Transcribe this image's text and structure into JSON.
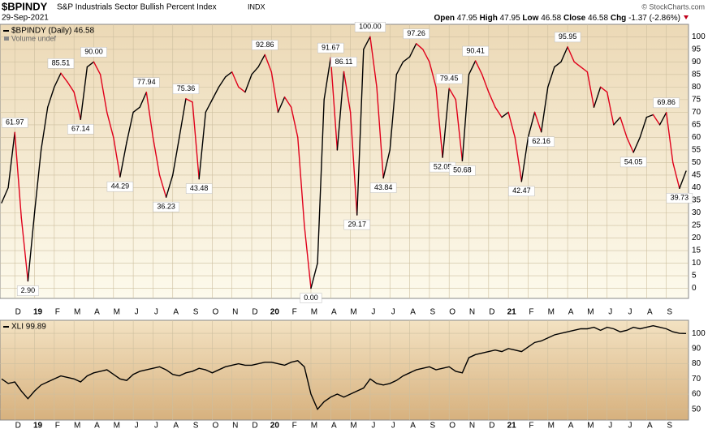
{
  "header": {
    "symbol": "$BPINDY",
    "name": "S&P Industrials Sector Bullish Percent Index",
    "exchange": "INDX",
    "date": "29-Sep-2021",
    "copyright": "© StockCharts.com",
    "quote": [
      {
        "label": "Open",
        "value": "47.95"
      },
      {
        "label": "High",
        "value": "47.95"
      },
      {
        "label": "Low",
        "value": "46.58"
      },
      {
        "label": "Close",
        "value": "46.58"
      },
      {
        "label": "Chg",
        "value": "-1.37 (-2.86%)"
      }
    ]
  },
  "chart_data": [
    {
      "type": "line",
      "volume_note": "Volume undef",
      "categories": [
        null,
        null,
        "D",
        null,
        null,
        "19",
        null,
        null,
        "F",
        null,
        null,
        "M",
        null,
        null,
        "A",
        null,
        null,
        "M",
        null,
        null,
        "J",
        null,
        null,
        "J",
        null,
        null,
        "A",
        null,
        null,
        "S",
        null,
        null,
        "O",
        null,
        null,
        "N",
        null,
        null,
        "D",
        null,
        null,
        "20",
        null,
        null,
        "F",
        null,
        null,
        "M",
        null,
        null,
        "A",
        null,
        null,
        "M",
        null,
        null,
        "J",
        null,
        null,
        "J",
        null,
        null,
        "A",
        null,
        null,
        "S",
        null,
        null,
        "O",
        null,
        null,
        "N",
        null,
        null,
        "D",
        null,
        null,
        "21",
        null,
        null,
        "F",
        null,
        null,
        "M",
        null,
        null,
        "A",
        null,
        null,
        "M",
        null,
        null,
        "J",
        null,
        null,
        "J",
        null,
        null,
        "A",
        null,
        null,
        "S",
        null,
        null,
        null
      ],
      "series": [
        {
          "name": "$BPINDY (Daily) 46.58",
          "color": "#000000",
          "down_color": "#e0001b",
          "values": [
            34,
            40,
            61.97,
            28,
            2.9,
            30,
            55,
            72,
            80,
            85.51,
            82,
            78,
            67.14,
            88,
            90,
            85,
            70,
            60,
            44.29,
            58,
            70,
            72,
            77.94,
            60,
            45,
            36.23,
            45,
            60,
            75.36,
            74,
            43.48,
            70,
            75,
            80,
            84,
            86,
            80,
            78,
            85,
            88,
            92.86,
            86,
            70,
            76,
            72,
            60,
            25,
            0,
            10,
            75,
            91.67,
            55,
            86.11,
            70,
            29.17,
            95,
            100,
            80,
            43.84,
            55,
            85,
            90,
            92,
            97.26,
            95,
            90,
            80,
            52.05,
            79.45,
            75,
            50.68,
            85,
            90.41,
            85,
            78,
            72,
            68,
            70,
            60,
            42.47,
            60,
            70,
            62.16,
            80,
            88,
            90,
            95.95,
            90,
            88,
            86,
            72,
            80,
            78,
            65,
            68,
            60,
            54.05,
            60,
            68,
            69,
            65,
            69.86,
            50,
            39.73,
            46.58
          ],
          "value_labels": [
            null,
            null,
            "61.97",
            null,
            "2.90",
            null,
            null,
            null,
            null,
            "85.51",
            null,
            null,
            "67.14",
            null,
            "90.00",
            null,
            null,
            null,
            "44.29",
            null,
            null,
            null,
            "77.94",
            null,
            null,
            "36.23",
            null,
            null,
            "75.36",
            null,
            "43.48",
            null,
            null,
            null,
            null,
            null,
            null,
            null,
            null,
            null,
            "92.86",
            null,
            null,
            null,
            null,
            null,
            null,
            "0.00",
            null,
            null,
            "91.67",
            null,
            "86.11",
            null,
            "29.17",
            null,
            "100.00",
            null,
            "43.84",
            null,
            null,
            null,
            null,
            "97.26",
            null,
            null,
            null,
            "52.05",
            "79.45",
            null,
            "50.68",
            null,
            "90.41",
            null,
            null,
            null,
            null,
            null,
            null,
            "42.47",
            null,
            null,
            "62.16",
            null,
            null,
            null,
            "95.95",
            null,
            null,
            null,
            null,
            null,
            null,
            null,
            null,
            null,
            "54.05",
            null,
            null,
            null,
            null,
            "69.86",
            null,
            "39.73",
            null
          ]
        }
      ],
      "ylim": [
        -4,
        103
      ],
      "yticks": [
        0,
        5,
        10,
        15,
        20,
        25,
        30,
        35,
        40,
        45,
        50,
        55,
        60,
        65,
        70,
        75,
        80,
        85,
        90,
        95,
        100
      ],
      "grid": true
    },
    {
      "type": "line",
      "series": [
        {
          "name": "XLI 99.89",
          "color": "#000000",
          "values": [
            70,
            67,
            68,
            62,
            57,
            62,
            66,
            68,
            70,
            72,
            71,
            70,
            68,
            72,
            74,
            75,
            76,
            73,
            70,
            69,
            73,
            75,
            76,
            77,
            78,
            76,
            73,
            72,
            74,
            75,
            77,
            76,
            74,
            76,
            78,
            79,
            80,
            79,
            79,
            80,
            81,
            81,
            80,
            79,
            81,
            82,
            78,
            60,
            50,
            55,
            58,
            60,
            58,
            60,
            62,
            64,
            70,
            67,
            66,
            67,
            69,
            72,
            74,
            76,
            77,
            78,
            76,
            77,
            78,
            75,
            74,
            84,
            86,
            87,
            88,
            89,
            88,
            90,
            89,
            88,
            91,
            94,
            95,
            97,
            99,
            100,
            101,
            102,
            103,
            103,
            104,
            102,
            104,
            103,
            101,
            102,
            104,
            103,
            104,
            105,
            104,
            103,
            101,
            100,
            99.89
          ]
        }
      ],
      "ylim": [
        44,
        107
      ],
      "yticks": [
        50,
        60,
        70,
        80,
        90,
        100
      ],
      "grid": true
    }
  ]
}
